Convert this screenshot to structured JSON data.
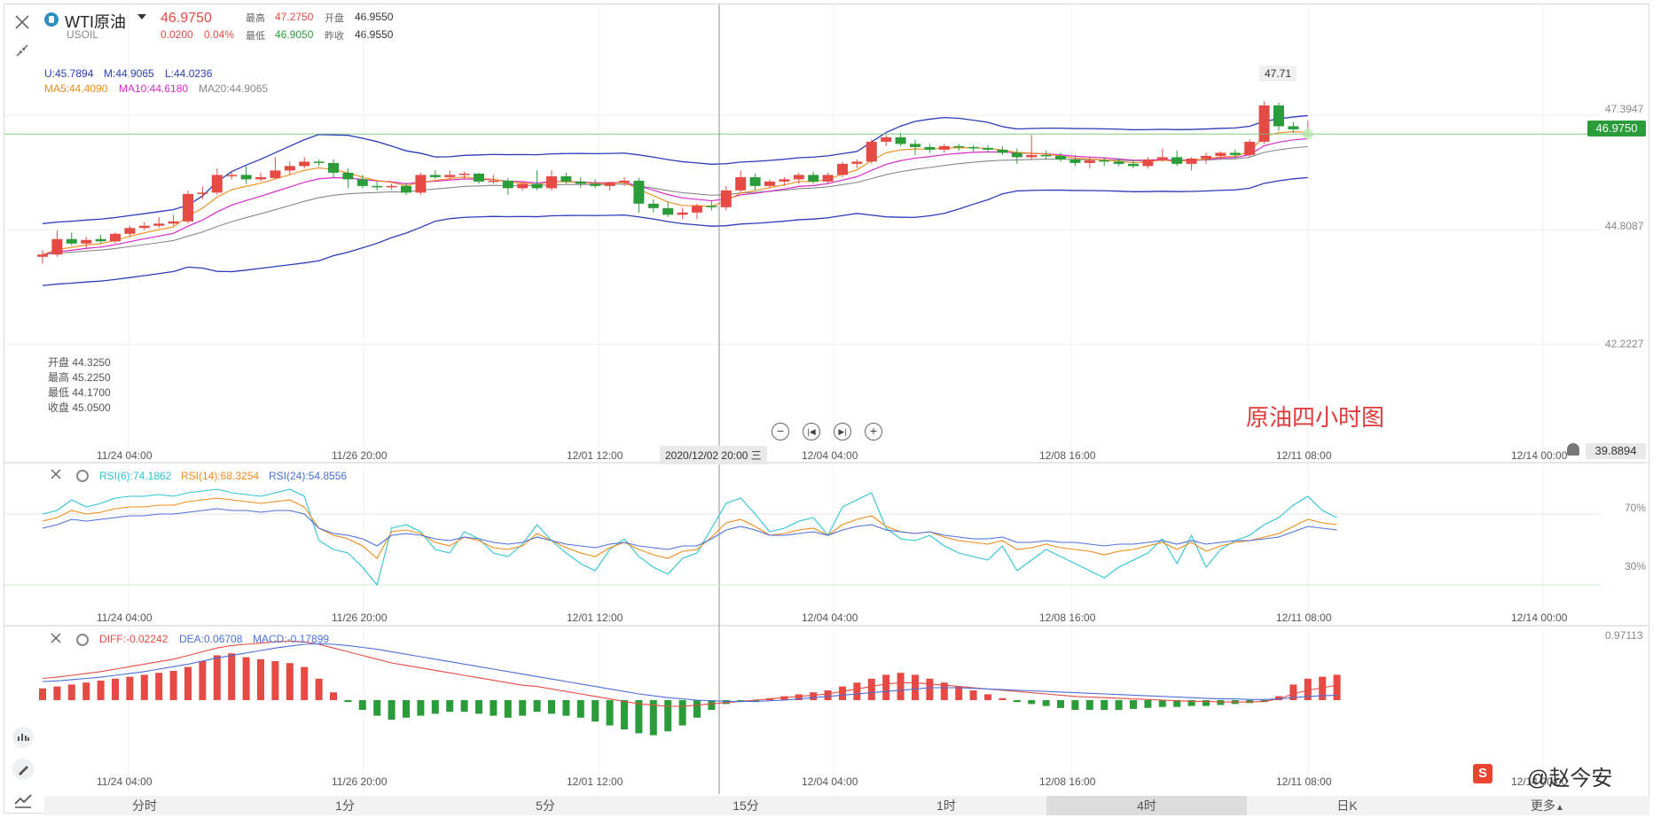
{
  "header": {
    "name": "WTI原油",
    "symbol": "USOIL",
    "price": "46.9750",
    "change": "0.0200",
    "change_pct": "0.04%",
    "high_label": "最高",
    "high": "47.2750",
    "low_label": "最低",
    "low": "46.9050",
    "open_label": "开盘",
    "open": "46.9550",
    "prev_label": "昨收",
    "prev": "46.9550"
  },
  "indicators": {
    "boll": {
      "u": "U:45.7894",
      "m": "M:44.9065",
      "l": "L:44.0236"
    },
    "ma": {
      "ma5": "MA5:44.4090",
      "ma10": "MA10:44.6180",
      "ma20": "MA20:44.9065"
    }
  },
  "ohlc_tooltip": {
    "open": "开盘 44.3250",
    "high": "最高 45.2250",
    "low": "最低 44.1700",
    "close": "收盘 45.0500"
  },
  "price_axis": [
    "47.3947",
    "44.8087",
    "42.2227",
    "39.8894"
  ],
  "current_price_badge": "46.9750",
  "peak_label": "47.71",
  "x_axis": [
    "11/24 04:00",
    "11/26 20:00",
    "12/01 12:00",
    "12/04 04:00",
    "12/08 16:00",
    "12/11 08:00",
    "12/14 00:00"
  ],
  "crosshair_time": "2020/12/02 20:00 三",
  "annotation": "原油四小时图",
  "rsi": {
    "rsi6": "RSI(6):74.1862",
    "rsi14": "RSI(14):68.3254",
    "rsi24": "RSI(24):54.8556",
    "levels": [
      "70%",
      "30%"
    ]
  },
  "macd": {
    "diff": "DIFF:-0.02242",
    "dea": "DEA:0.06708",
    "macd": "MACD:-0.17899",
    "top": "0.97113"
  },
  "tabs": [
    "分时",
    "1分",
    "5分",
    "15分",
    "1时",
    "4时",
    "日K",
    "更多"
  ],
  "active_tab": "4时",
  "watermark": "@赵今安",
  "colors": {
    "up": "#e54b44",
    "down": "#2a9c3a",
    "boll": "#2a3cb8",
    "ma5": "#f08c1a",
    "ma10": "#d62bc9",
    "ma20": "#888888"
  },
  "chart_data": {
    "type": "candlestick",
    "interval": "4时",
    "candles": [
      {
        "o": 44.2,
        "h": 44.35,
        "l": 44.05,
        "c": 44.25
      },
      {
        "o": 44.25,
        "h": 44.8,
        "l": 44.2,
        "c": 44.6
      },
      {
        "o": 44.6,
        "h": 44.75,
        "l": 44.45,
        "c": 44.5
      },
      {
        "o": 44.5,
        "h": 44.65,
        "l": 44.4,
        "c": 44.58
      },
      {
        "o": 44.6,
        "h": 44.7,
        "l": 44.5,
        "c": 44.55
      },
      {
        "o": 44.55,
        "h": 44.75,
        "l": 44.5,
        "c": 44.72
      },
      {
        "o": 44.72,
        "h": 44.9,
        "l": 44.65,
        "c": 44.85
      },
      {
        "o": 44.85,
        "h": 44.98,
        "l": 44.8,
        "c": 44.9
      },
      {
        "o": 44.9,
        "h": 45.1,
        "l": 44.85,
        "c": 44.95
      },
      {
        "o": 44.95,
        "h": 45.15,
        "l": 44.9,
        "c": 45.0
      },
      {
        "o": 45.0,
        "h": 45.7,
        "l": 44.95,
        "c": 45.62
      },
      {
        "o": 45.62,
        "h": 45.78,
        "l": 45.5,
        "c": 45.65
      },
      {
        "o": 45.65,
        "h": 46.2,
        "l": 45.6,
        "c": 46.05
      },
      {
        "o": 46.05,
        "h": 46.15,
        "l": 45.95,
        "c": 46.05
      },
      {
        "o": 46.05,
        "h": 46.25,
        "l": 45.85,
        "c": 45.95
      },
      {
        "o": 45.95,
        "h": 46.1,
        "l": 45.9,
        "c": 46.0
      },
      {
        "o": 45.98,
        "h": 46.45,
        "l": 45.95,
        "c": 46.15
      },
      {
        "o": 46.15,
        "h": 46.35,
        "l": 46.05,
        "c": 46.25
      },
      {
        "o": 46.25,
        "h": 46.45,
        "l": 46.2,
        "c": 46.35
      },
      {
        "o": 46.35,
        "h": 46.4,
        "l": 46.25,
        "c": 46.32
      },
      {
        "o": 46.32,
        "h": 46.4,
        "l": 46.0,
        "c": 46.1
      },
      {
        "o": 46.1,
        "h": 46.2,
        "l": 45.75,
        "c": 45.95
      },
      {
        "o": 45.95,
        "h": 46.05,
        "l": 45.75,
        "c": 45.8
      },
      {
        "o": 45.8,
        "h": 45.9,
        "l": 45.7,
        "c": 45.77
      },
      {
        "o": 45.77,
        "h": 45.85,
        "l": 45.72,
        "c": 45.8
      },
      {
        "o": 45.8,
        "h": 45.88,
        "l": 45.6,
        "c": 45.65
      },
      {
        "o": 45.65,
        "h": 46.1,
        "l": 45.6,
        "c": 46.05
      },
      {
        "o": 46.05,
        "h": 46.15,
        "l": 45.95,
        "c": 46.0
      },
      {
        "o": 46.0,
        "h": 46.15,
        "l": 45.95,
        "c": 46.05
      },
      {
        "o": 46.05,
        "h": 46.12,
        "l": 45.95,
        "c": 46.08
      },
      {
        "o": 46.08,
        "h": 46.1,
        "l": 45.85,
        "c": 45.9
      },
      {
        "o": 45.9,
        "h": 46.05,
        "l": 45.85,
        "c": 45.92
      },
      {
        "o": 45.92,
        "h": 45.98,
        "l": 45.6,
        "c": 45.75
      },
      {
        "o": 45.75,
        "h": 45.9,
        "l": 45.7,
        "c": 45.85
      },
      {
        "o": 45.85,
        "h": 46.15,
        "l": 45.7,
        "c": 45.75
      },
      {
        "o": 45.75,
        "h": 46.15,
        "l": 45.7,
        "c": 46.02
      },
      {
        "o": 46.02,
        "h": 46.1,
        "l": 45.85,
        "c": 45.9
      },
      {
        "o": 45.9,
        "h": 46.0,
        "l": 45.75,
        "c": 45.85
      },
      {
        "o": 45.85,
        "h": 45.95,
        "l": 45.75,
        "c": 45.8
      },
      {
        "o": 45.8,
        "h": 45.9,
        "l": 45.7,
        "c": 45.88
      },
      {
        "o": 45.88,
        "h": 46.0,
        "l": 45.8,
        "c": 45.92
      },
      {
        "o": 45.92,
        "h": 45.98,
        "l": 45.2,
        "c": 45.4
      },
      {
        "o": 45.4,
        "h": 45.5,
        "l": 45.2,
        "c": 45.3
      },
      {
        "o": 45.3,
        "h": 45.45,
        "l": 45.1,
        "c": 45.15
      },
      {
        "o": 45.15,
        "h": 45.3,
        "l": 45.05,
        "c": 45.2
      },
      {
        "o": 45.2,
        "h": 45.4,
        "l": 45.05,
        "c": 45.35
      },
      {
        "o": 45.35,
        "h": 45.45,
        "l": 45.25,
        "c": 45.32
      },
      {
        "o": 45.32,
        "h": 45.8,
        "l": 45.25,
        "c": 45.7
      },
      {
        "o": 45.7,
        "h": 46.15,
        "l": 45.65,
        "c": 46.0
      },
      {
        "o": 46.0,
        "h": 46.08,
        "l": 45.7,
        "c": 45.8
      },
      {
        "o": 45.8,
        "h": 45.95,
        "l": 45.75,
        "c": 45.9
      },
      {
        "o": 45.9,
        "h": 46.0,
        "l": 45.8,
        "c": 45.95
      },
      {
        "o": 45.95,
        "h": 46.1,
        "l": 45.85,
        "c": 46.05
      },
      {
        "o": 46.05,
        "h": 46.12,
        "l": 45.85,
        "c": 45.9
      },
      {
        "o": 45.9,
        "h": 46.1,
        "l": 45.85,
        "c": 46.05
      },
      {
        "o": 46.05,
        "h": 46.35,
        "l": 46.0,
        "c": 46.3
      },
      {
        "o": 46.3,
        "h": 46.4,
        "l": 46.2,
        "c": 46.35
      },
      {
        "o": 46.35,
        "h": 46.85,
        "l": 46.3,
        "c": 46.8
      },
      {
        "o": 46.8,
        "h": 46.95,
        "l": 46.7,
        "c": 46.9
      },
      {
        "o": 46.9,
        "h": 47.0,
        "l": 46.7,
        "c": 46.75
      },
      {
        "o": 46.75,
        "h": 46.85,
        "l": 46.5,
        "c": 46.68
      },
      {
        "o": 46.68,
        "h": 46.75,
        "l": 46.55,
        "c": 46.62
      },
      {
        "o": 46.62,
        "h": 46.75,
        "l": 46.55,
        "c": 46.7
      },
      {
        "o": 46.7,
        "h": 46.75,
        "l": 46.6,
        "c": 46.68
      },
      {
        "o": 46.68,
        "h": 46.72,
        "l": 46.58,
        "c": 46.66
      },
      {
        "o": 46.66,
        "h": 46.72,
        "l": 46.55,
        "c": 46.62
      },
      {
        "o": 46.62,
        "h": 46.7,
        "l": 46.5,
        "c": 46.55
      },
      {
        "o": 46.55,
        "h": 46.65,
        "l": 46.3,
        "c": 46.45
      },
      {
        "o": 46.45,
        "h": 46.95,
        "l": 46.4,
        "c": 46.5
      },
      {
        "o": 46.5,
        "h": 46.6,
        "l": 46.4,
        "c": 46.48
      },
      {
        "o": 46.48,
        "h": 46.55,
        "l": 46.35,
        "c": 46.4
      },
      {
        "o": 46.4,
        "h": 46.5,
        "l": 46.25,
        "c": 46.32
      },
      {
        "o": 46.32,
        "h": 46.45,
        "l": 46.2,
        "c": 46.38
      },
      {
        "o": 46.38,
        "h": 46.45,
        "l": 46.25,
        "c": 46.35
      },
      {
        "o": 46.35,
        "h": 46.42,
        "l": 46.25,
        "c": 46.3
      },
      {
        "o": 46.3,
        "h": 46.4,
        "l": 46.2,
        "c": 46.25
      },
      {
        "o": 46.25,
        "h": 46.45,
        "l": 46.2,
        "c": 46.4
      },
      {
        "o": 46.4,
        "h": 46.65,
        "l": 46.35,
        "c": 46.45
      },
      {
        "o": 46.45,
        "h": 46.6,
        "l": 46.25,
        "c": 46.3
      },
      {
        "o": 46.3,
        "h": 46.45,
        "l": 46.15,
        "c": 46.42
      },
      {
        "o": 46.42,
        "h": 46.55,
        "l": 46.3,
        "c": 46.48
      },
      {
        "o": 46.48,
        "h": 46.58,
        "l": 46.4,
        "c": 46.55
      },
      {
        "o": 46.55,
        "h": 46.62,
        "l": 46.42,
        "c": 46.5
      },
      {
        "o": 46.5,
        "h": 46.85,
        "l": 46.45,
        "c": 46.8
      },
      {
        "o": 46.8,
        "h": 47.71,
        "l": 46.75,
        "c": 47.62
      },
      {
        "o": 47.62,
        "h": 47.68,
        "l": 47.05,
        "c": 47.15
      },
      {
        "o": 47.15,
        "h": 47.25,
        "l": 47.0,
        "c": 47.08
      },
      {
        "o": 46.955,
        "h": 47.275,
        "l": 46.905,
        "c": 46.975
      }
    ],
    "rsi6": [
      70,
      72,
      78,
      74,
      76,
      79,
      80,
      80,
      81,
      80,
      82,
      83,
      84,
      82,
      81,
      80,
      82,
      84,
      80,
      55,
      50,
      48,
      40,
      30,
      62,
      64,
      60,
      50,
      48,
      60,
      56,
      48,
      46,
      53,
      64,
      55,
      48,
      42,
      38,
      50,
      56,
      46,
      40,
      36,
      45,
      48,
      62,
      76,
      79,
      70,
      60,
      62,
      66,
      68,
      58,
      74,
      78,
      82,
      62,
      56,
      55,
      58,
      52,
      48,
      46,
      44,
      52,
      38,
      44,
      50,
      46,
      42,
      38,
      34,
      40,
      44,
      48,
      56,
      42,
      58,
      40,
      50,
      55,
      58,
      64,
      68,
      75,
      80,
      72,
      68
    ],
    "rsi14": [
      66,
      68,
      72,
      70,
      71,
      73,
      74,
      74,
      75,
      75,
      77,
      78,
      79,
      78,
      77,
      76,
      77,
      78,
      74,
      62,
      58,
      56,
      52,
      45,
      60,
      61,
      59,
      54,
      52,
      57,
      55,
      51,
      50,
      52,
      59,
      55,
      51,
      48,
      46,
      51,
      54,
      50,
      47,
      45,
      49,
      50,
      57,
      65,
      67,
      63,
      58,
      59,
      61,
      62,
      58,
      64,
      67,
      69,
      63,
      60,
      59,
      60,
      57,
      55,
      54,
      53,
      55,
      50,
      51,
      53,
      51,
      50,
      49,
      47,
      49,
      50,
      52,
      54,
      50,
      54,
      49,
      52,
      54,
      55,
      57,
      59,
      63,
      67,
      65,
      64
    ],
    "rsi24": [
      62,
      64,
      67,
      66,
      67,
      68,
      69,
      69,
      70,
      70,
      71,
      72,
      73,
      72,
      72,
      71,
      72,
      72,
      70,
      62,
      59,
      58,
      56,
      52,
      58,
      59,
      58,
      56,
      55,
      57,
      56,
      54,
      53,
      54,
      57,
      55,
      53,
      52,
      51,
      53,
      54,
      52,
      51,
      50,
      52,
      52,
      56,
      61,
      63,
      61,
      58,
      58,
      59,
      60,
      58,
      61,
      63,
      64,
      61,
      60,
      59,
      60,
      58,
      57,
      56,
      56,
      57,
      54,
      54,
      55,
      54,
      54,
      53,
      52,
      53,
      53,
      54,
      55,
      53,
      55,
      53,
      54,
      55,
      55,
      56,
      57,
      60,
      63,
      62,
      61
    ],
    "macd_hist": [
      0.12,
      0.14,
      0.16,
      0.18,
      0.2,
      0.22,
      0.24,
      0.26,
      0.28,
      0.3,
      0.34,
      0.4,
      0.46,
      0.48,
      0.44,
      0.42,
      0.4,
      0.38,
      0.34,
      0.22,
      0.08,
      -0.02,
      -0.1,
      -0.16,
      -0.2,
      -0.18,
      -0.16,
      -0.14,
      -0.12,
      -0.12,
      -0.14,
      -0.16,
      -0.18,
      -0.16,
      -0.12,
      -0.14,
      -0.16,
      -0.18,
      -0.22,
      -0.26,
      -0.3,
      -0.34,
      -0.36,
      -0.32,
      -0.26,
      -0.18,
      -0.1,
      -0.04,
      -0.02,
      -0.02,
      0.02,
      0.04,
      0.06,
      0.08,
      0.1,
      0.14,
      0.18,
      0.22,
      0.26,
      0.28,
      0.26,
      0.22,
      0.18,
      0.14,
      0.1,
      0.06,
      0.02,
      -0.02,
      -0.04,
      -0.06,
      -0.08,
      -0.1,
      -0.1,
      -0.1,
      -0.1,
      -0.09,
      -0.08,
      -0.07,
      -0.07,
      -0.06,
      -0.06,
      -0.05,
      -0.04,
      -0.03,
      -0.02,
      0.04,
      0.16,
      0.22,
      0.24,
      0.26
    ],
    "macd_diff": [
      0.35,
      0.37,
      0.4,
      0.43,
      0.46,
      0.5,
      0.54,
      0.58,
      0.62,
      0.66,
      0.72,
      0.78,
      0.84,
      0.88,
      0.9,
      0.92,
      0.94,
      0.95,
      0.94,
      0.9,
      0.84,
      0.78,
      0.72,
      0.66,
      0.6,
      0.56,
      0.52,
      0.48,
      0.44,
      0.4,
      0.36,
      0.32,
      0.28,
      0.24,
      0.22,
      0.18,
      0.14,
      0.1,
      0.06,
      0.02,
      -0.02,
      -0.06,
      -0.08,
      -0.1,
      -0.1,
      -0.08,
      -0.06,
      -0.04,
      -0.02,
      0.0,
      0.02,
      0.04,
      0.06,
      0.08,
      0.1,
      0.14,
      0.18,
      0.22,
      0.26,
      0.28,
      0.28,
      0.26,
      0.24,
      0.22,
      0.2,
      0.18,
      0.16,
      0.14,
      0.12,
      0.1,
      0.08,
      0.06,
      0.05,
      0.04,
      0.03,
      0.02,
      0.01,
      0.0,
      -0.01,
      -0.02,
      -0.02,
      -0.03,
      -0.03,
      -0.03,
      -0.02,
      0.02,
      0.1,
      0.16,
      0.2,
      0.24
    ],
    "macd_dea": [
      0.3,
      0.31,
      0.33,
      0.35,
      0.37,
      0.4,
      0.43,
      0.46,
      0.5,
      0.54,
      0.58,
      0.63,
      0.68,
      0.72,
      0.76,
      0.8,
      0.84,
      0.87,
      0.9,
      0.91,
      0.9,
      0.88,
      0.85,
      0.82,
      0.78,
      0.74,
      0.7,
      0.66,
      0.62,
      0.58,
      0.54,
      0.5,
      0.46,
      0.42,
      0.38,
      0.34,
      0.3,
      0.26,
      0.22,
      0.18,
      0.14,
      0.1,
      0.07,
      0.04,
      0.02,
      0.0,
      -0.01,
      -0.02,
      -0.02,
      -0.02,
      -0.01,
      0.0,
      0.02,
      0.04,
      0.06,
      0.08,
      0.1,
      0.12,
      0.14,
      0.16,
      0.18,
      0.2,
      0.2,
      0.2,
      0.19,
      0.18,
      0.17,
      0.16,
      0.15,
      0.14,
      0.13,
      0.12,
      0.11,
      0.1,
      0.09,
      0.08,
      0.07,
      0.06,
      0.05,
      0.04,
      0.03,
      0.02,
      0.02,
      0.01,
      0.01,
      0.02,
      0.04,
      0.06,
      0.07,
      0.08
    ]
  }
}
